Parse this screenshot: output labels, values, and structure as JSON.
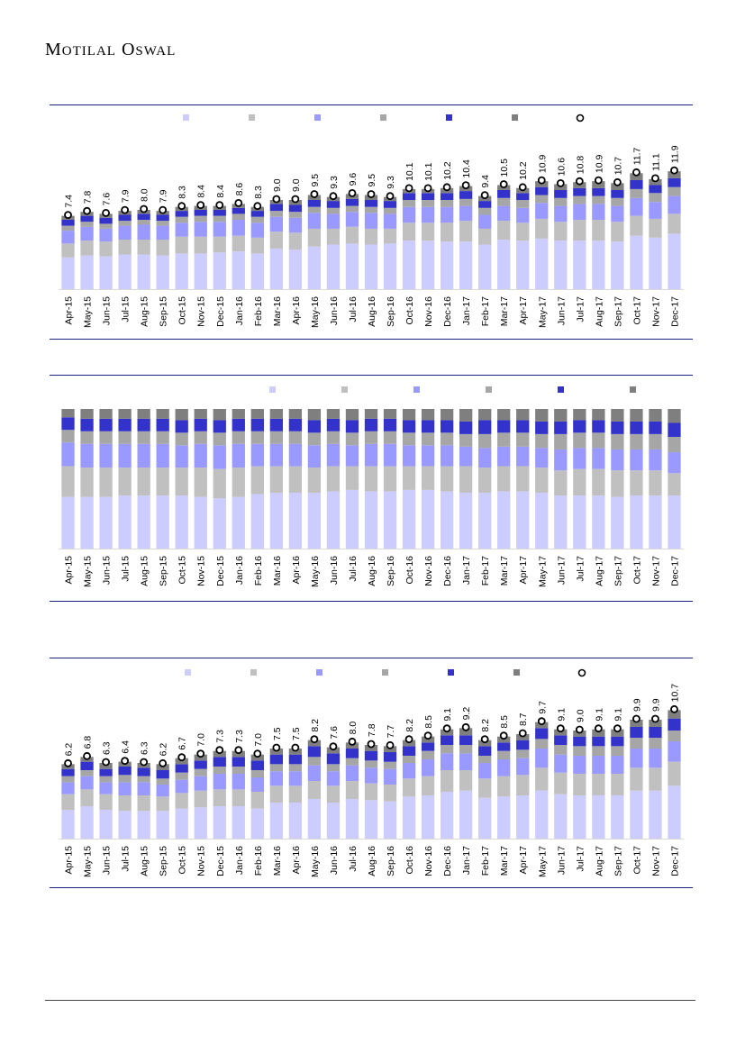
{
  "brand": {
    "name": "Motilal Oswal"
  },
  "colors": {
    "seg1": "#ccccff",
    "seg2": "#c0c0c0",
    "seg3": "#9999ff",
    "seg4": "#a6a6a6",
    "seg5": "#3333cc",
    "seg6": "#7f7f7f",
    "rule": "#1a237e",
    "marker": "#000000"
  },
  "chart_data": [
    {
      "type": "bar",
      "stacked": true,
      "legend_position": "top",
      "categories": [
        "Apr-15",
        "May-15",
        "Jun-15",
        "Jul-15",
        "Aug-15",
        "Sep-15",
        "Oct-15",
        "Nov-15",
        "Dec-15",
        "Jan-16",
        "Feb-16",
        "Mar-16",
        "Apr-16",
        "May-16",
        "Jun-16",
        "Jul-16",
        "Aug-16",
        "Sep-16",
        "Oct-16",
        "Nov-16",
        "Dec-16",
        "Jan-17",
        "Feb-17",
        "Mar-17",
        "Apr-17",
        "May-17",
        "Jun-17",
        "Jul-17",
        "Aug-17",
        "Sep-17",
        "Oct-17",
        "Nov-17",
        "Dec-17"
      ],
      "totals": [
        7.4,
        7.8,
        7.6,
        7.9,
        8.0,
        7.9,
        8.3,
        8.4,
        8.4,
        8.6,
        8.3,
        9.0,
        9.0,
        9.5,
        9.3,
        9.6,
        9.5,
        9.3,
        10.1,
        10.1,
        10.2,
        10.4,
        9.4,
        10.5,
        10.2,
        10.9,
        10.6,
        10.8,
        10.9,
        10.7,
        11.7,
        11.1,
        11.9
      ],
      "ylim": [
        0,
        14
      ],
      "series": [
        {
          "name": "",
          "values": [
            3.2,
            3.4,
            3.3,
            3.5,
            3.5,
            3.4,
            3.6,
            3.6,
            3.7,
            3.8,
            3.6,
            4.1,
            4.0,
            4.3,
            4.5,
            4.6,
            4.5,
            4.6,
            4.9,
            4.9,
            4.8,
            4.8,
            4.5,
            5.0,
            4.9,
            5.1,
            4.9,
            4.9,
            4.9,
            4.8,
            5.4,
            5.2,
            5.6
          ]
        },
        {
          "name": "",
          "values": [
            1.4,
            1.5,
            1.5,
            1.5,
            1.5,
            1.6,
            1.7,
            1.7,
            1.6,
            1.6,
            1.6,
            1.7,
            1.7,
            1.8,
            1.6,
            1.7,
            1.6,
            1.5,
            1.8,
            1.8,
            1.9,
            2.1,
            1.6,
            1.9,
            1.8,
            2.0,
            1.9,
            2.1,
            2.1,
            2.0,
            2.0,
            1.9,
            2.0
          ]
        },
        {
          "name": "",
          "values": [
            1.3,
            1.4,
            1.3,
            1.4,
            1.5,
            1.4,
            1.4,
            1.5,
            1.5,
            1.6,
            1.5,
            1.5,
            1.5,
            1.6,
            1.5,
            1.5,
            1.6,
            1.5,
            1.6,
            1.6,
            1.6,
            1.5,
            1.4,
            1.5,
            1.5,
            1.6,
            1.6,
            1.6,
            1.6,
            1.6,
            1.8,
            1.7,
            1.8
          ]
        },
        {
          "name": "",
          "values": [
            0.5,
            0.5,
            0.5,
            0.5,
            0.5,
            0.5,
            0.6,
            0.6,
            0.6,
            0.6,
            0.6,
            0.6,
            0.6,
            0.6,
            0.6,
            0.6,
            0.6,
            0.6,
            0.7,
            0.7,
            0.7,
            0.7,
            0.7,
            0.8,
            0.8,
            0.8,
            0.8,
            0.8,
            0.8,
            0.8,
            0.9,
            0.9,
            0.9
          ]
        },
        {
          "name": "",
          "values": [
            0.6,
            0.6,
            0.6,
            0.6,
            0.6,
            0.6,
            0.6,
            0.6,
            0.6,
            0.6,
            0.6,
            0.7,
            0.7,
            0.7,
            0.7,
            0.7,
            0.7,
            0.7,
            0.7,
            0.7,
            0.7,
            0.8,
            0.7,
            0.8,
            0.7,
            0.8,
            0.8,
            0.8,
            0.8,
            0.8,
            0.9,
            0.8,
            0.9
          ]
        },
        {
          "name": "",
          "values": [
            0.4,
            0.4,
            0.4,
            0.4,
            0.4,
            0.4,
            0.4,
            0.4,
            0.4,
            0.4,
            0.4,
            0.4,
            0.5,
            0.5,
            0.4,
            0.5,
            0.5,
            0.4,
            0.4,
            0.4,
            0.5,
            0.5,
            0.5,
            0.5,
            0.5,
            0.6,
            0.6,
            0.6,
            0.7,
            0.7,
            0.7,
            0.6,
            0.7
          ]
        }
      ],
      "total_marker": {
        "name": ""
      }
    },
    {
      "type": "bar",
      "stacked": true,
      "percent": true,
      "legend_position": "top",
      "categories": [
        "Apr-15",
        "May-15",
        "Jun-15",
        "Jul-15",
        "Aug-15",
        "Sep-15",
        "Oct-15",
        "Nov-15",
        "Dec-15",
        "Jan-16",
        "Feb-16",
        "Mar-16",
        "Apr-16",
        "May-16",
        "Jun-16",
        "Jul-16",
        "Aug-16",
        "Sep-16",
        "Oct-16",
        "Nov-16",
        "Dec-16",
        "Jan-17",
        "Feb-17",
        "Mar-17",
        "Apr-17",
        "May-17",
        "Jun-17",
        "Jul-17",
        "Aug-17",
        "Sep-17",
        "Oct-17",
        "Nov-17",
        "Dec-17"
      ],
      "ylim": [
        0,
        100
      ],
      "series": [
        {
          "name": "",
          "values": [
            37,
            37,
            37,
            38,
            38,
            38,
            38,
            37,
            36,
            37,
            39,
            40,
            40,
            40,
            41,
            42,
            41,
            41,
            42,
            42,
            41,
            40,
            40,
            41,
            41,
            40,
            38,
            38,
            38,
            37,
            38,
            38,
            38
          ]
        },
        {
          "name": "",
          "values": [
            22,
            21,
            21,
            20,
            20,
            20,
            20,
            21,
            21,
            21,
            20,
            19,
            19,
            18,
            18,
            17,
            18,
            18,
            17,
            17,
            18,
            19,
            18,
            18,
            18,
            18,
            18,
            19,
            19,
            19,
            18,
            18,
            16
          ]
        },
        {
          "name": "",
          "values": [
            17,
            17,
            17,
            17,
            17,
            17,
            16,
            17,
            17,
            17,
            16,
            16,
            16,
            16,
            16,
            15,
            16,
            16,
            15,
            15,
            15,
            14,
            14,
            14,
            14,
            14,
            15,
            15,
            15,
            15,
            15,
            15,
            15
          ]
        },
        {
          "name": "",
          "values": [
            9,
            9,
            9,
            9,
            9,
            9,
            9,
            9,
            9,
            9,
            9,
            9,
            9,
            9,
            9,
            9,
            9,
            9,
            9,
            9,
            9,
            9,
            10,
            10,
            10,
            10,
            11,
            11,
            11,
            11,
            11,
            11,
            11
          ]
        },
        {
          "name": "",
          "values": [
            9,
            9,
            9,
            9,
            9,
            9,
            9,
            9,
            9,
            9,
            9,
            9,
            9,
            9,
            9,
            9,
            9,
            9,
            9,
            9,
            9,
            9,
            10,
            9,
            9,
            9,
            9,
            9,
            9,
            9,
            9,
            9,
            10
          ]
        },
        {
          "name": "",
          "values": [
            6,
            7,
            7,
            7,
            7,
            7,
            8,
            7,
            8,
            7,
            7,
            7,
            7,
            8,
            7,
            8,
            7,
            7,
            8,
            8,
            8,
            9,
            8,
            8,
            8,
            9,
            9,
            8,
            8,
            9,
            9,
            9,
            10
          ]
        }
      ]
    },
    {
      "type": "bar",
      "stacked": true,
      "legend_position": "top",
      "categories": [
        "Apr-15",
        "May-15",
        "Jun-15",
        "Jul-15",
        "Aug-15",
        "Sep-15",
        "Oct-15",
        "Nov-15",
        "Dec-15",
        "Jan-16",
        "Feb-16",
        "Mar-16",
        "Apr-16",
        "May-16",
        "Jun-16",
        "Jul-16",
        "Aug-16",
        "Sep-16",
        "Oct-16",
        "Nov-16",
        "Dec-16",
        "Jan-17",
        "Feb-17",
        "Mar-17",
        "Apr-17",
        "May-17",
        "Jun-17",
        "Jul-17",
        "Aug-17",
        "Sep-17",
        "Oct-17",
        "Nov-17",
        "Dec-17"
      ],
      "totals": [
        6.2,
        6.8,
        6.3,
        6.4,
        6.3,
        6.2,
        6.7,
        7.0,
        7.3,
        7.3,
        7.0,
        7.5,
        7.5,
        8.2,
        7.6,
        8.0,
        7.8,
        7.7,
        8.2,
        8.5,
        9.1,
        9.2,
        8.2,
        8.5,
        8.7,
        9.7,
        9.1,
        9.0,
        9.1,
        9.1,
        9.9,
        9.9,
        10.7
      ],
      "ylim": [
        0,
        12
      ],
      "series": [
        {
          "name": "",
          "values": [
            2.4,
            2.7,
            2.4,
            2.3,
            2.3,
            2.3,
            2.5,
            2.6,
            2.7,
            2.7,
            2.5,
            3.0,
            3.0,
            3.3,
            3.0,
            3.3,
            3.2,
            3.1,
            3.5,
            3.6,
            3.9,
            4.0,
            3.4,
            3.5,
            3.6,
            4.0,
            3.7,
            3.6,
            3.6,
            3.6,
            4.0,
            4.0,
            4.4
          ]
        },
        {
          "name": "",
          "values": [
            1.3,
            1.4,
            1.3,
            1.3,
            1.3,
            1.2,
            1.3,
            1.4,
            1.4,
            1.4,
            1.4,
            1.4,
            1.4,
            1.5,
            1.4,
            1.5,
            1.4,
            1.4,
            1.5,
            1.6,
            1.8,
            1.7,
            1.6,
            1.7,
            1.7,
            1.9,
            1.8,
            1.8,
            1.8,
            1.8,
            1.9,
            1.9,
            2.0
          ]
        },
        {
          "name": "",
          "values": [
            1.0,
            1.1,
            1.0,
            1.1,
            1.1,
            1.0,
            1.1,
            1.2,
            1.3,
            1.3,
            1.2,
            1.2,
            1.2,
            1.3,
            1.2,
            1.3,
            1.3,
            1.3,
            1.3,
            1.4,
            1.4,
            1.4,
            1.3,
            1.4,
            1.4,
            1.6,
            1.5,
            1.5,
            1.5,
            1.5,
            1.6,
            1.6,
            1.7
          ]
        },
        {
          "name": "",
          "values": [
            0.5,
            0.5,
            0.5,
            0.6,
            0.5,
            0.5,
            0.6,
            0.6,
            0.6,
            0.6,
            0.6,
            0.6,
            0.6,
            0.7,
            0.6,
            0.6,
            0.6,
            0.6,
            0.6,
            0.7,
            0.7,
            0.7,
            0.6,
            0.7,
            0.7,
            0.8,
            0.8,
            0.8,
            0.8,
            0.8,
            0.9,
            0.9,
            0.9
          ]
        },
        {
          "name": "",
          "values": [
            0.6,
            0.7,
            0.6,
            0.7,
            0.7,
            0.7,
            0.7,
            0.7,
            0.8,
            0.8,
            0.8,
            0.8,
            0.8,
            0.9,
            0.9,
            0.8,
            0.8,
            0.8,
            0.8,
            0.7,
            0.8,
            0.8,
            0.8,
            0.7,
            0.8,
            0.9,
            0.8,
            0.8,
            0.8,
            0.8,
            0.9,
            0.9,
            1.0
          ]
        },
        {
          "name": "",
          "values": [
            0.4,
            0.4,
            0.5,
            0.4,
            0.4,
            0.5,
            0.5,
            0.5,
            0.5,
            0.5,
            0.5,
            0.5,
            0.5,
            0.5,
            0.5,
            0.5,
            0.5,
            0.5,
            0.5,
            0.5,
            0.5,
            0.6,
            0.5,
            0.5,
            0.5,
            0.5,
            0.5,
            0.5,
            0.6,
            0.6,
            0.6,
            0.6,
            0.7
          ]
        }
      ],
      "total_marker": {
        "name": ""
      }
    }
  ]
}
